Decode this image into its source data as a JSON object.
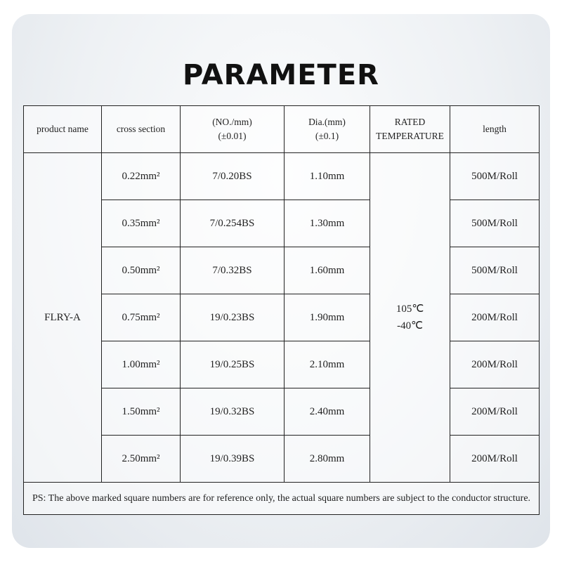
{
  "title": "PARAMETER",
  "headers": [
    "product name",
    "cross section",
    "(NO./mm)",
    "(±0.01)",
    "Dia.(mm)",
    "(±0.1)",
    "RATED",
    "TEMPERATURE",
    "length"
  ],
  "product_name": "FLRY-A",
  "temperature": [
    "105℃",
    "-40℃"
  ],
  "rows": [
    {
      "section": "0.22mm²",
      "strand": "7/0.20BS",
      "dia": "1.10mm",
      "length": "500M/Roll"
    },
    {
      "section": "0.35mm²",
      "strand": "7/0.254BS",
      "dia": "1.30mm",
      "length": "500M/Roll"
    },
    {
      "section": "0.50mm²",
      "strand": "7/0.32BS",
      "dia": "1.60mm",
      "length": "500M/Roll"
    },
    {
      "section": "0.75mm²",
      "strand": "19/0.23BS",
      "dia": "1.90mm",
      "length": "200M/Roll"
    },
    {
      "section": "1.00mm²",
      "strand": "19/0.25BS",
      "dia": "2.10mm",
      "length": "200M/Roll"
    },
    {
      "section": "1.50mm²",
      "strand": "19/0.32BS",
      "dia": "2.40mm",
      "length": "200M/Roll"
    },
    {
      "section": "2.50mm²",
      "strand": "19/0.39BS",
      "dia": "2.80mm",
      "length": "200M/Roll"
    }
  ],
  "note": "PS: The above marked square numbers are for reference only, the actual square numbers are subject to the conductor structure."
}
